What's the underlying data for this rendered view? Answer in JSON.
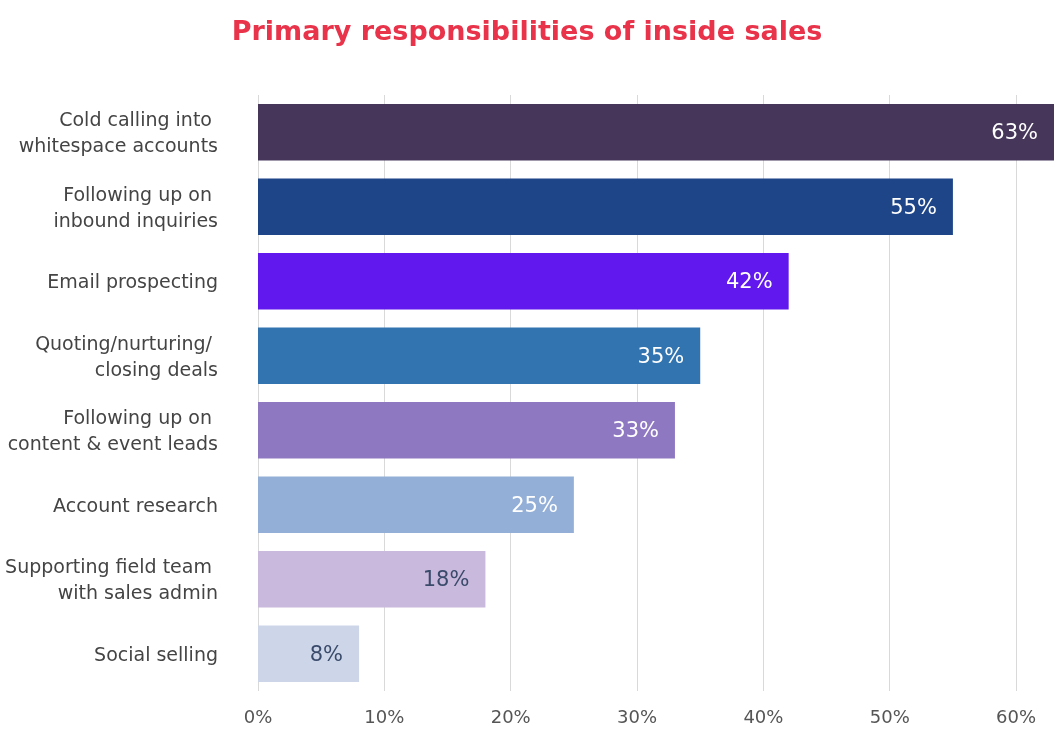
{
  "chart_data": {
    "type": "bar",
    "orientation": "horizontal",
    "title": "Primary responsibilities of inside sales",
    "categories": [
      "Cold calling into whitespace accounts",
      "Following up on inbound inquiries",
      "Email prospecting",
      "Quoting/nurturing/ closing deals",
      "Following up on content & event leads",
      "Account research",
      "Supporting field team with sales admin",
      "Social selling"
    ],
    "values": [
      63,
      55,
      42,
      35,
      33,
      25,
      18,
      8
    ],
    "colors": [
      "#45365a",
      "#1f4589",
      "#6118ee",
      "#3274b0",
      "#8f78c2",
      "#93afd8",
      "#c9b9dc",
      "#cdd6e9"
    ],
    "value_labels": [
      "63%",
      "55%",
      "42%",
      "35%",
      "33%",
      "25%",
      "18%",
      "8%"
    ],
    "xlim": [
      0,
      63
    ],
    "xticks": [
      {
        "value": 0,
        "label": "0%"
      },
      {
        "value": 10,
        "label": "10%"
      },
      {
        "value": 20,
        "label": "20%"
      },
      {
        "value": 30,
        "label": "30%"
      },
      {
        "value": 40,
        "label": "40%"
      },
      {
        "value": 50,
        "label": "50%"
      },
      {
        "value": 60,
        "label": "60%"
      }
    ],
    "grid": "x"
  }
}
